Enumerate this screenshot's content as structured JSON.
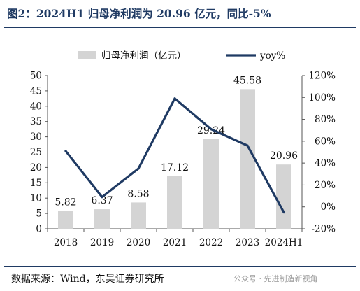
{
  "title": "图2：2024H1 归母净利润为 20.96 亿元，同比-5%",
  "source": "数据来源：Wind，东吴证券研究所",
  "watermark": "公众号 · 先进制造新视角",
  "colors": {
    "bar": "#d4d4d4",
    "line": "#1f3a63",
    "title": "#1f3a63"
  },
  "chart_data": {
    "type": "bar",
    "categories": [
      "2018",
      "2019",
      "2020",
      "2021",
      "2022",
      "2023",
      "2024H1"
    ],
    "series": [
      {
        "name": "归母净利润（亿元）",
        "type": "bar",
        "axis": "left",
        "values": [
          5.82,
          6.37,
          8.58,
          17.12,
          29.24,
          45.58,
          20.96
        ],
        "labels": [
          "5.82",
          "6.37",
          "8.58",
          "17.12",
          "29.24",
          "45.58",
          "20.96"
        ]
      },
      {
        "name": "yoy%",
        "type": "line",
        "axis": "right",
        "values": [
          51,
          9,
          35,
          99,
          71,
          56,
          -5
        ]
      }
    ],
    "y_left": {
      "ylim": [
        0,
        50
      ],
      "ticks": [
        "0",
        "5",
        "10",
        "15",
        "20",
        "25",
        "30",
        "35",
        "40",
        "45",
        "50"
      ]
    },
    "y_right": {
      "ylim": [
        -20,
        120
      ],
      "ticks": [
        "-20%",
        "0%",
        "20%",
        "40%",
        "60%",
        "80%",
        "100%",
        "120%"
      ]
    },
    "legend": "top",
    "grid": false
  }
}
